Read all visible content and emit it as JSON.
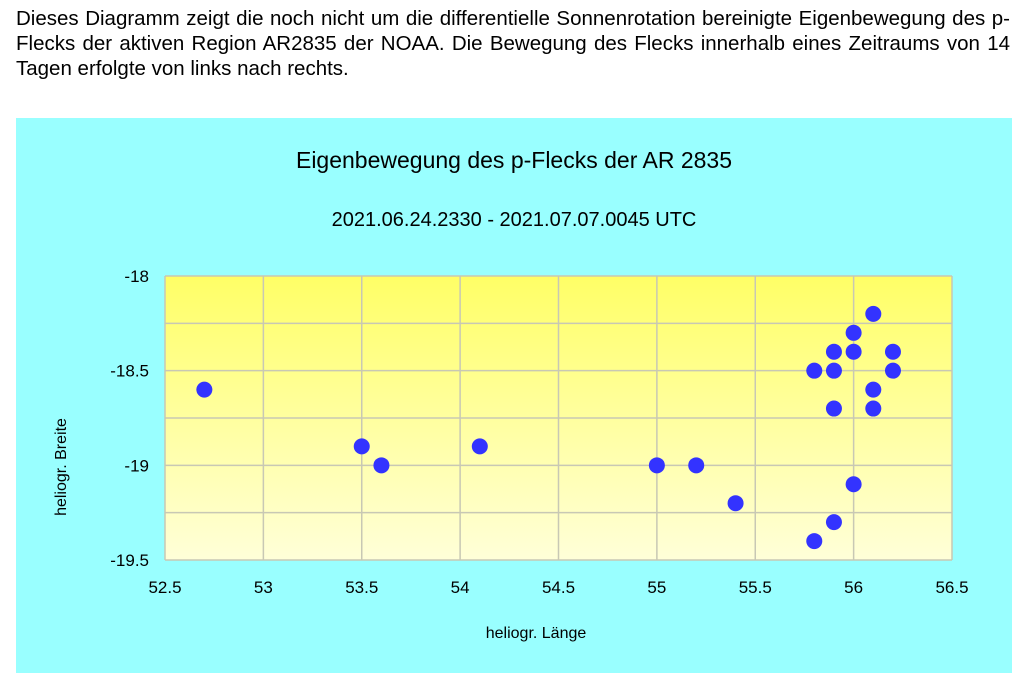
{
  "intro_text": "Dieses Diagramm zeigt die noch nicht um die differentielle Sonnenrotation  bereinigte Eigenbewegung des p-Flecks der aktiven Region AR2835 der NOAA. Die Bewegung des Flecks innerhalb eines Zeitraums von 14 Tagen erfolgte von links nach rechts.",
  "chart_data": {
    "type": "scatter",
    "title": "Eigenbewegung des p-Flecks der AR 2835",
    "subtitle": "2021.06.24.2330 - 2021.07.07.0045 UTC",
    "xlabel": "heliogr. Länge",
    "ylabel": "heliogr. Breite",
    "xlim": [
      52.5,
      56.5
    ],
    "ylim": [
      -19.5,
      -18
    ],
    "xticks": [
      52.5,
      53,
      53.5,
      54,
      54.5,
      55,
      55.5,
      56,
      56.5
    ],
    "yticks": [
      -18,
      -18.5,
      -19,
      -19.5
    ],
    "grid": true,
    "legend": "none",
    "colors": {
      "point": "#3333ff",
      "panel": "#99ffff",
      "plot_top": "#ffff66",
      "plot_bottom": "#ffffd8"
    },
    "points": [
      [
        52.7,
        -18.6
      ],
      [
        53.5,
        -18.9
      ],
      [
        53.6,
        -19.0
      ],
      [
        54.1,
        -18.9
      ],
      [
        55.0,
        -19.0
      ],
      [
        55.2,
        -19.0
      ],
      [
        55.4,
        -19.2
      ],
      [
        55.8,
        -18.5
      ],
      [
        55.8,
        -19.4
      ],
      [
        55.9,
        -18.4
      ],
      [
        55.9,
        -18.5
      ],
      [
        55.9,
        -18.7
      ],
      [
        55.9,
        -19.3
      ],
      [
        56.0,
        -18.3
      ],
      [
        56.0,
        -18.4
      ],
      [
        56.0,
        -19.1
      ],
      [
        56.1,
        -18.2
      ],
      [
        56.1,
        -18.6
      ],
      [
        56.1,
        -18.7
      ],
      [
        56.2,
        -18.4
      ],
      [
        56.2,
        -18.5
      ]
    ]
  }
}
